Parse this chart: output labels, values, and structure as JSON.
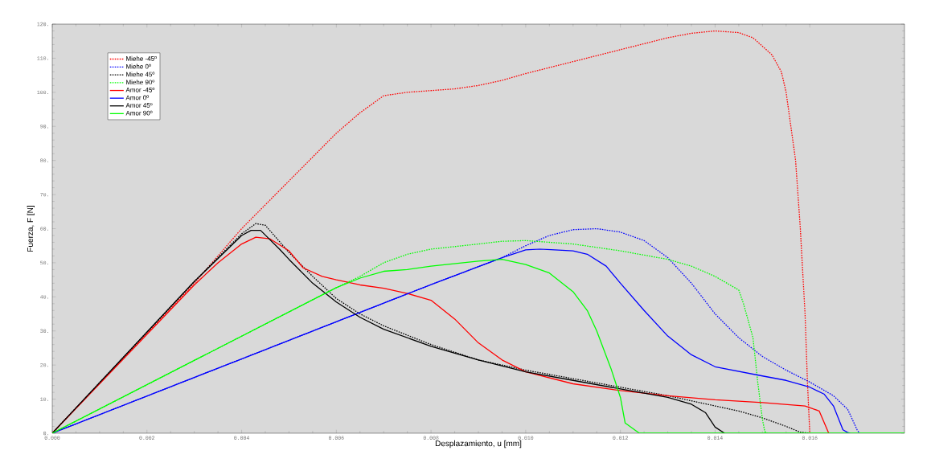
{
  "chart_data": {
    "type": "line",
    "xlabel": "Desplazamiento, u [mm]",
    "ylabel": "Fuerza, F [N]",
    "xlim": [
      0,
      0.018
    ],
    "ylim": [
      0,
      120
    ],
    "xticks": [
      {
        "value": 0,
        "label": "0.000"
      },
      {
        "value": 0.002,
        "label": "0.002"
      },
      {
        "value": 0.004,
        "label": "0.004"
      },
      {
        "value": 0.006,
        "label": "0.006"
      },
      {
        "value": 0.008,
        "label": "0.008"
      },
      {
        "value": 0.01,
        "label": "0.010"
      },
      {
        "value": 0.012,
        "label": "0.012"
      },
      {
        "value": 0.014,
        "label": "0.014"
      },
      {
        "value": 0.016,
        "label": "0.016"
      }
    ],
    "yticks": [
      {
        "value": 0,
        "label": "0."
      },
      {
        "value": 10,
        "label": "10."
      },
      {
        "value": 20,
        "label": "20."
      },
      {
        "value": 30,
        "label": "30."
      },
      {
        "value": 40,
        "label": "40."
      },
      {
        "value": 50,
        "label": "50."
      },
      {
        "value": 60,
        "label": "60."
      },
      {
        "value": 70,
        "label": "70."
      },
      {
        "value": 80,
        "label": "80."
      },
      {
        "value": 90,
        "label": "90."
      },
      {
        "value": 100,
        "label": "100."
      },
      {
        "value": 110,
        "label": "110."
      },
      {
        "value": 120,
        "label": "120."
      }
    ],
    "grid": false,
    "legend": "top left",
    "marker": "none",
    "series": [
      {
        "name": "Miehe -45º",
        "color": "#ff0000",
        "line_style": "dotted",
        "x": [
          0,
          0.003,
          0.004,
          0.005,
          0.006,
          0.0065,
          0.007,
          0.0075,
          0.008,
          0.0085,
          0.009,
          0.0095,
          0.01,
          0.011,
          0.012,
          0.013,
          0.0135,
          0.014,
          0.0145,
          0.0148,
          0.0152,
          0.0154,
          0.0155,
          0.0157,
          0.0158,
          0.0159,
          0.01595,
          0.016
        ],
        "values": [
          0,
          44,
          60,
          74,
          88,
          94,
          99,
          100,
          100.5,
          101,
          102,
          103.5,
          105.5,
          109,
          112.5,
          116,
          117.3,
          118,
          117.5,
          116,
          111,
          106,
          100,
          80,
          60,
          35,
          15,
          0
        ]
      },
      {
        "name": "Miehe 0º",
        "color": "#0000ff",
        "line_style": "dotted",
        "x": [
          0,
          0.004,
          0.008,
          0.0095,
          0.01,
          0.0105,
          0.011,
          0.0115,
          0.012,
          0.0125,
          0.013,
          0.0135,
          0.014,
          0.0145,
          0.015,
          0.0155,
          0.016,
          0.0165,
          0.0168,
          0.017,
          0.01705
        ],
        "values": [
          0,
          21.8,
          43.6,
          51.5,
          55,
          58,
          59.7,
          60,
          59,
          56.5,
          51.5,
          44,
          35,
          28,
          22.5,
          18.5,
          15,
          11,
          7,
          1,
          0
        ]
      },
      {
        "name": "Miehe 45º",
        "color": "#000000",
        "line_style": "dotted",
        "x": [
          0,
          0.003,
          0.004,
          0.0043,
          0.0045,
          0.005,
          0.0055,
          0.006,
          0.0065,
          0.007,
          0.008,
          0.009,
          0.01,
          0.011,
          0.012,
          0.013,
          0.0135,
          0.014,
          0.0145,
          0.015,
          0.0155,
          0.0158,
          0.016
        ],
        "values": [
          0,
          44.5,
          58.5,
          61.5,
          61,
          53,
          46,
          39.5,
          35,
          31.5,
          26,
          21.5,
          18.5,
          16,
          13.5,
          11,
          9.5,
          8,
          6.5,
          4.5,
          2,
          0.3,
          0
        ]
      },
      {
        "name": "Miehe 90º",
        "color": "#00ff00",
        "line_style": "dotted",
        "x": [
          0,
          0.006,
          0.0065,
          0.007,
          0.0075,
          0.008,
          0.009,
          0.0095,
          0.01,
          0.011,
          0.012,
          0.013,
          0.0135,
          0.014,
          0.0145,
          0.0146,
          0.0148,
          0.0149,
          0.015,
          0.01505,
          0.0151
        ],
        "values": [
          0,
          42.7,
          46,
          50,
          52.5,
          54,
          55.5,
          56.3,
          56.5,
          55.5,
          53.5,
          51,
          49,
          46,
          42,
          38,
          28,
          15,
          4,
          0.5,
          0
        ]
      },
      {
        "name": "Amor -45º",
        "color": "#ff0000",
        "line_style": "solid",
        "x": [
          0,
          0.003,
          0.0035,
          0.004,
          0.0043,
          0.0046,
          0.005,
          0.0053,
          0.0057,
          0.006,
          0.0065,
          0.007,
          0.0075,
          0.008,
          0.0085,
          0.009,
          0.0095,
          0.01,
          0.011,
          0.012,
          0.013,
          0.014,
          0.015,
          0.0159,
          0.0162,
          0.0164
        ],
        "values": [
          0,
          43.5,
          50,
          55.5,
          57.5,
          57,
          53.5,
          48.5,
          46,
          45,
          43.5,
          42.5,
          41,
          39,
          33.5,
          26.5,
          21.5,
          18,
          14.5,
          12.5,
          11,
          9.8,
          9,
          8,
          6.5,
          0
        ]
      },
      {
        "name": "Amor 0º",
        "color": "#0000ff",
        "line_style": "solid",
        "x": [
          0,
          0.004,
          0.008,
          0.0095,
          0.01,
          0.0103,
          0.011,
          0.0113,
          0.0117,
          0.012,
          0.0125,
          0.013,
          0.0135,
          0.014,
          0.015,
          0.0155,
          0.016,
          0.0163,
          0.0165,
          0.0167,
          0.0168,
          0.01685
        ],
        "values": [
          0,
          21.8,
          43.6,
          51.5,
          53.8,
          54,
          53.5,
          52.5,
          49,
          44,
          36,
          28.5,
          23,
          19.5,
          16.8,
          15.5,
          13.5,
          11.5,
          8,
          1,
          0.2,
          0
        ]
      },
      {
        "name": "Amor 45º",
        "color": "#000000",
        "line_style": "solid",
        "x": [
          0,
          0.003,
          0.004,
          0.0042,
          0.0044,
          0.0048,
          0.005,
          0.0055,
          0.006,
          0.0065,
          0.007,
          0.008,
          0.009,
          0.01,
          0.011,
          0.012,
          0.013,
          0.0135,
          0.0138,
          0.014,
          0.0142
        ],
        "values": [
          0,
          44.5,
          58,
          59.5,
          59.5,
          54,
          51,
          44,
          38.5,
          34,
          30.5,
          25.5,
          21.5,
          18,
          15.5,
          13,
          10.5,
          8.5,
          6,
          1.8,
          0
        ]
      },
      {
        "name": "Amor 90º",
        "color": "#00ff00",
        "line_style": "solid",
        "x": [
          0,
          0.006,
          0.0065,
          0.007,
          0.0075,
          0.008,
          0.009,
          0.0095,
          0.01,
          0.0105,
          0.011,
          0.0113,
          0.0115,
          0.0118,
          0.012,
          0.0121,
          0.0124,
          0.018
        ],
        "values": [
          0,
          42.7,
          45.5,
          47.5,
          48,
          49,
          50.5,
          51,
          49.5,
          47,
          41.5,
          36,
          30,
          19,
          10.5,
          3,
          0,
          0
        ]
      }
    ]
  }
}
